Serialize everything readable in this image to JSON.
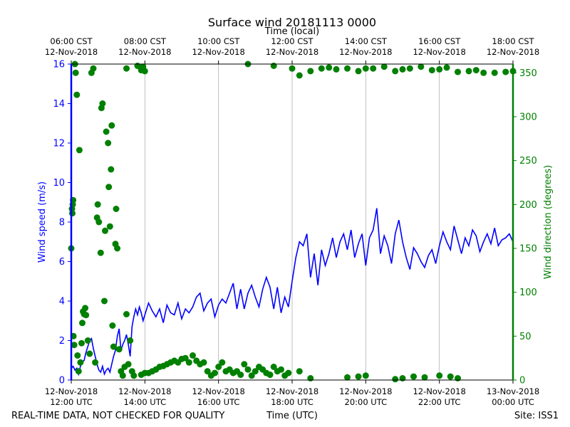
{
  "chart_data": {
    "type": "line",
    "title": "Surface wind 20181113 0000",
    "top_axis_label": "Time (local)",
    "xlabel": "Time (UTC)",
    "ylabel_left": "Wind speed (m/s)",
    "ylabel_right": "Wind direction (degrees)",
    "footer_left": "REAL-TIME DATA, NOT CHECKED FOR QUALITY",
    "footer_right": "Site: ISS1",
    "x_unit": "hours since 12:00 UTC",
    "xlim": [
      0,
      12
    ],
    "ylim_left": [
      0,
      16
    ],
    "ylim_right": [
      0,
      360
    ],
    "grid": "vertical",
    "colors": {
      "speed": "#0000ff",
      "direction": "#008000",
      "axis": "#000000",
      "grid": "#b0b0b0"
    },
    "bottom_ticks": [
      {
        "x": 0,
        "line1": "12-Nov-2018",
        "line2": "12:00 UTC"
      },
      {
        "x": 2,
        "line1": "12-Nov-2018",
        "line2": "14:00 UTC"
      },
      {
        "x": 4,
        "line1": "12-Nov-2018",
        "line2": "16:00 UTC"
      },
      {
        "x": 6,
        "line1": "12-Nov-2018",
        "line2": "18:00 UTC"
      },
      {
        "x": 8,
        "line1": "12-Nov-2018",
        "line2": "20:00 UTC"
      },
      {
        "x": 10,
        "line1": "12-Nov-2018",
        "line2": "22:00 UTC"
      },
      {
        "x": 12,
        "line1": "13-Nov-2018",
        "line2": "00:00 UTC"
      }
    ],
    "top_ticks": [
      {
        "x": 0,
        "line1": "06:00 CST",
        "line2": "12-Nov-2018"
      },
      {
        "x": 2,
        "line1": "08:00 CST",
        "line2": "12-Nov-2018"
      },
      {
        "x": 4,
        "line1": "10:00 CST",
        "line2": "12-Nov-2018"
      },
      {
        "x": 6,
        "line1": "12:00 CST",
        "line2": "12-Nov-2018"
      },
      {
        "x": 8,
        "line1": "14:00 CST",
        "line2": "12-Nov-2018"
      },
      {
        "x": 10,
        "line1": "16:00 CST",
        "line2": "12-Nov-2018"
      },
      {
        "x": 12,
        "line1": "18:00 CST",
        "line2": "12-Nov-2018"
      }
    ],
    "left_ticks": [
      0,
      2,
      4,
      6,
      8,
      10,
      12,
      14,
      16
    ],
    "right_ticks": [
      0,
      50,
      100,
      150,
      200,
      250,
      300,
      350
    ],
    "series": [
      {
        "name": "Wind speed",
        "axis": "left",
        "style": "line",
        "x": [
          0.0,
          0.05,
          0.1,
          0.15,
          0.2,
          0.25,
          0.3,
          0.35,
          0.4,
          0.45,
          0.5,
          0.55,
          0.6,
          0.65,
          0.7,
          0.75,
          0.8,
          0.85,
          0.9,
          0.95,
          1.0,
          1.05,
          1.1,
          1.15,
          1.2,
          1.25,
          1.3,
          1.35,
          1.4,
          1.45,
          1.5,
          1.55,
          1.6,
          1.65,
          1.7,
          1.75,
          1.8,
          1.85,
          1.9,
          1.95,
          2.0,
          2.1,
          2.2,
          2.3,
          2.4,
          2.5,
          2.6,
          2.7,
          2.8,
          2.9,
          3.0,
          3.1,
          3.2,
          3.3,
          3.4,
          3.5,
          3.6,
          3.7,
          3.8,
          3.9,
          4.0,
          4.1,
          4.2,
          4.3,
          4.4,
          4.5,
          4.6,
          4.7,
          4.8,
          4.9,
          5.0,
          5.1,
          5.2,
          5.3,
          5.4,
          5.5,
          5.6,
          5.7,
          5.8,
          5.9,
          6.0,
          6.1,
          6.2,
          6.3,
          6.4,
          6.5,
          6.6,
          6.7,
          6.8,
          6.9,
          7.0,
          7.1,
          7.2,
          7.3,
          7.4,
          7.5,
          7.6,
          7.7,
          7.8,
          7.9,
          8.0,
          8.1,
          8.2,
          8.3,
          8.4,
          8.5,
          8.6,
          8.7,
          8.8,
          8.9,
          9.0,
          9.1,
          9.2,
          9.3,
          9.4,
          9.5,
          9.6,
          9.7,
          9.8,
          9.9,
          10.0,
          10.1,
          10.2,
          10.3,
          10.4,
          10.5,
          10.6,
          10.7,
          10.8,
          10.9,
          11.0,
          11.1,
          11.2,
          11.3,
          11.4,
          11.5,
          11.6,
          11.7,
          11.8,
          11.9,
          12.0
        ],
        "values": [
          0.6,
          0.7,
          0.5,
          0.6,
          0.3,
          0.7,
          0.9,
          1.0,
          1.4,
          1.7,
          2.0,
          2.1,
          1.6,
          1.2,
          0.8,
          0.5,
          0.4,
          0.7,
          0.3,
          0.5,
          0.6,
          0.4,
          0.8,
          1.2,
          1.5,
          2.2,
          2.6,
          1.5,
          1.8,
          2.0,
          2.3,
          1.8,
          1.2,
          2.7,
          3.2,
          3.6,
          3.3,
          3.7,
          3.4,
          3.0,
          3.3,
          3.9,
          3.5,
          3.2,
          3.6,
          2.9,
          3.8,
          3.4,
          3.3,
          3.9,
          3.1,
          3.6,
          3.4,
          3.7,
          4.2,
          4.4,
          3.5,
          3.9,
          4.1,
          3.2,
          3.8,
          4.1,
          3.9,
          4.4,
          4.9,
          3.6,
          4.6,
          3.6,
          4.4,
          4.8,
          4.2,
          3.7,
          4.6,
          5.2,
          4.7,
          3.6,
          4.7,
          3.4,
          4.2,
          3.7,
          5.0,
          6.2,
          7.0,
          6.8,
          7.4,
          5.2,
          6.4,
          4.8,
          6.6,
          5.8,
          6.4,
          7.2,
          6.2,
          7.0,
          7.4,
          6.6,
          7.6,
          6.2,
          6.9,
          7.4,
          5.8,
          7.2,
          7.6,
          8.7,
          6.4,
          7.3,
          6.8,
          5.9,
          7.4,
          8.1,
          7.0,
          6.2,
          5.6,
          6.7,
          6.4,
          6.0,
          5.7,
          6.3,
          6.6,
          5.9,
          6.8,
          7.5,
          7.0,
          6.6,
          7.8,
          7.1,
          6.4,
          7.2,
          6.8,
          7.6,
          7.3,
          6.5,
          7.0,
          7.4,
          6.9,
          7.7,
          6.8,
          7.1,
          7.2,
          7.4,
          7.0
        ]
      },
      {
        "name": "Wind direction",
        "axis": "right",
        "style": "scatter",
        "x": [
          0.0,
          0.02,
          0.03,
          0.04,
          0.05,
          0.06,
          0.08,
          0.1,
          0.12,
          0.15,
          0.17,
          0.2,
          0.22,
          0.25,
          0.28,
          0.3,
          0.32,
          0.35,
          0.38,
          0.4,
          0.45,
          0.5,
          0.55,
          0.6,
          0.65,
          0.7,
          0.72,
          0.75,
          0.8,
          0.82,
          0.85,
          0.9,
          0.92,
          0.95,
          1.0,
          1.02,
          1.05,
          1.08,
          1.1,
          1.12,
          1.15,
          1.2,
          1.22,
          1.25,
          1.3,
          1.35,
          1.4,
          1.45,
          1.5,
          1.55,
          1.6,
          1.65,
          1.7,
          1.8,
          1.9,
          2.0,
          2.1,
          2.2,
          2.3,
          2.4,
          2.5,
          2.6,
          2.7,
          2.8,
          2.9,
          3.0,
          3.1,
          3.2,
          3.3,
          3.4,
          3.5,
          3.6,
          3.7,
          3.8,
          3.9,
          4.0,
          4.1,
          4.2,
          4.3,
          4.4,
          4.5,
          4.6,
          4.7,
          4.8,
          4.9,
          5.0,
          5.1,
          5.2,
          5.3,
          5.4,
          5.5,
          5.6,
          5.7,
          5.8,
          5.9,
          1.5,
          1.9,
          1.95,
          2.0,
          4.8,
          5.5,
          6.0,
          6.2,
          6.5,
          6.8,
          7.0,
          7.2,
          7.5,
          7.8,
          8.0,
          8.2,
          8.5,
          8.8,
          9.0,
          9.2,
          9.5,
          9.8,
          10.0,
          10.2,
          10.5,
          10.8,
          11.0,
          11.2,
          11.5,
          11.8,
          12.0,
          6.2,
          6.5,
          7.5,
          7.8,
          8.0,
          8.8,
          9.0,
          9.3,
          9.6,
          10.0,
          10.3,
          10.5
        ],
        "values": [
          150,
          195,
          190,
          200,
          205,
          50,
          40,
          360,
          350,
          325,
          28,
          10,
          262,
          20,
          42,
          65,
          78,
          75,
          82,
          74,
          45,
          30,
          350,
          355,
          20,
          185,
          200,
          180,
          145,
          310,
          315,
          90,
          170,
          283,
          270,
          220,
          175,
          240,
          290,
          62,
          38,
          155,
          195,
          150,
          35,
          10,
          5,
          15,
          75,
          18,
          45,
          10,
          5,
          358,
          6,
          8,
          8,
          10,
          12,
          15,
          16,
          18,
          20,
          22,
          20,
          24,
          25,
          20,
          28,
          22,
          18,
          20,
          10,
          5,
          8,
          15,
          20,
          10,
          12,
          8,
          10,
          6,
          18,
          12,
          5,
          10,
          15,
          12,
          8,
          6,
          15,
          10,
          12,
          5,
          8,
          355,
          353,
          357,
          352,
          360,
          358,
          355,
          347,
          352,
          355,
          356,
          354,
          355,
          352,
          355,
          355,
          357,
          352,
          354,
          355,
          357,
          353,
          354,
          356,
          351,
          352,
          353,
          350,
          350,
          351,
          352,
          10,
          2,
          3,
          4,
          5,
          1,
          2,
          4,
          3,
          5,
          4,
          2
        ]
      }
    ]
  }
}
